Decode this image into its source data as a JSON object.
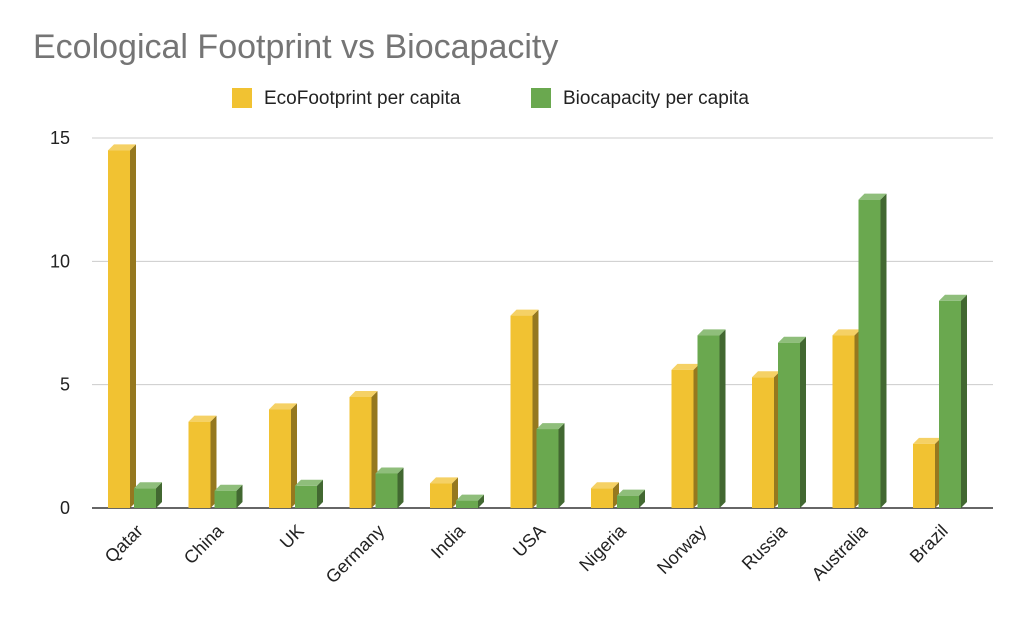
{
  "chart_data": {
    "type": "bar",
    "title": "Ecological Footprint vs Biocapacity",
    "xlabel": "",
    "ylabel": "",
    "categories": [
      "Qatar",
      "China",
      "UK",
      "Germany",
      "India",
      "USA",
      "Nigeria",
      "Norway",
      "Russia",
      "Australia",
      "Brazil"
    ],
    "series": [
      {
        "name": "EcoFootprint per capita",
        "color": "#F1C232",
        "values": [
          14.5,
          3.5,
          4.0,
          4.5,
          1.0,
          7.8,
          0.8,
          5.6,
          5.3,
          7.0,
          2.6
        ]
      },
      {
        "name": "Biocapacity per capita",
        "color": "#6AA84F",
        "values": [
          0.8,
          0.7,
          0.9,
          1.4,
          0.3,
          3.2,
          0.5,
          7.0,
          6.7,
          12.5,
          8.4
        ]
      }
    ],
    "ylim": [
      0,
      15
    ],
    "yticks": [
      0,
      5,
      10,
      15
    ],
    "grid": true,
    "legend_position": "top"
  }
}
